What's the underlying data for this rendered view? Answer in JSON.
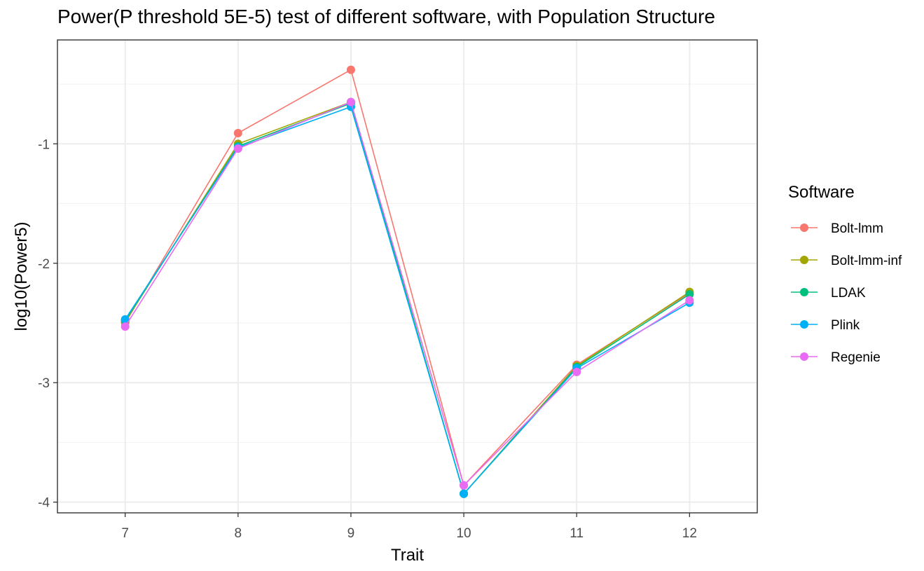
{
  "chart_data": {
    "type": "line",
    "title": "Power(P threshold 5E-5) test of different software, with Population Structure",
    "xlabel": "Trait",
    "ylabel": "log10(Power5)",
    "x": [
      7,
      8,
      9,
      10,
      11,
      12
    ],
    "x_tick_labels": [
      "7",
      "8",
      "9",
      "10",
      "11",
      "12"
    ],
    "xlim": [
      6.4,
      12.6
    ],
    "y_ticks": [
      -4,
      -3,
      -2,
      -1
    ],
    "y_tick_labels": [
      "-4",
      "-3",
      "-2",
      "-1"
    ],
    "ylim": [
      -4.09,
      -0.13
    ],
    "grid": true,
    "legend_title": "Software",
    "legend_position": "right",
    "series": [
      {
        "name": "Bolt-lmm",
        "color": "#F8766D",
        "values": [
          -2.5,
          -0.91,
          -0.38,
          -3.86,
          -2.85,
          -2.25
        ]
      },
      {
        "name": "Bolt-lmm-inf",
        "color": "#A3A500",
        "values": [
          -2.49,
          -1.0,
          -0.65,
          -3.93,
          -2.86,
          -2.24
        ]
      },
      {
        "name": "LDAK",
        "color": "#00BF7D",
        "values": [
          -2.48,
          -1.02,
          -0.66,
          -3.93,
          -2.87,
          -2.26
        ]
      },
      {
        "name": "Plink",
        "color": "#00B0F6",
        "values": [
          -2.47,
          -1.03,
          -0.69,
          -3.93,
          -2.88,
          -2.33
        ]
      },
      {
        "name": "Regenie",
        "color": "#E76BF3",
        "values": [
          -2.53,
          -1.04,
          -0.65,
          -3.86,
          -2.91,
          -2.31
        ]
      }
    ]
  }
}
